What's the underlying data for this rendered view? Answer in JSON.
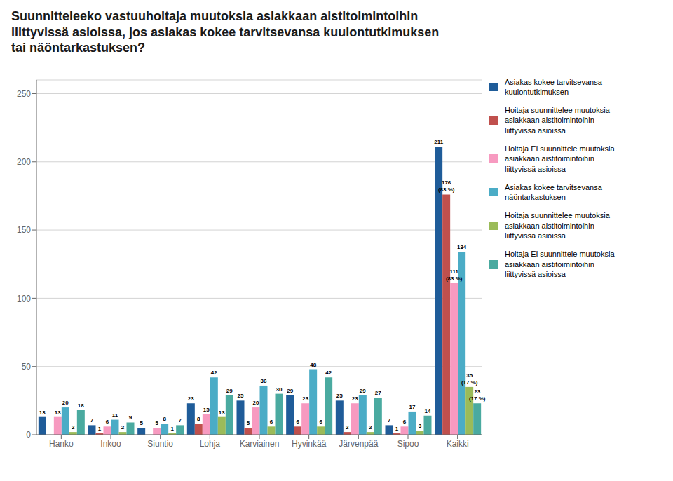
{
  "chart_data": {
    "type": "bar",
    "title": "Suunnitteleeko vastuuhoitaja muutoksia asiakkaan aistitoimintoihin\nliittyvissä asioissa, jos asiakas kokee tarvitsevansa kuulontutkimuksen\ntai näöntarkastuksen?",
    "categories": [
      "Hanko",
      "Inkoo",
      "Siuntio",
      "Lohja",
      "Karviainen",
      "Hyvinkää",
      "Järvenpää",
      "Sipoo",
      "Kaikki"
    ],
    "series": [
      {
        "name": "Asiakas kokee tarvitsevansa\nkuulontutkimuksen",
        "color": "#1F5C99",
        "values": [
          13,
          7,
          5,
          23,
          25,
          29,
          25,
          7,
          211
        ]
      },
      {
        "name": "Hoitaja suunnittelee muutoksia\nasiakkaan aistitoimintoihin\nliittyvissä asioissa",
        "color": "#C0504D",
        "values": [
          0,
          1,
          0,
          8,
          5,
          6,
          2,
          1,
          176
        ],
        "value_labels": [
          null,
          "1",
          null,
          "8",
          "5",
          "6",
          "2",
          "1",
          "176\n(83 %)"
        ]
      },
      {
        "name": "Hoitaja Ei suunnittele muutoksia\nasiakkaan aistitoimintoihin\nliittyvissä asioissa",
        "color": "#F79AC0",
        "values": [
          13,
          6,
          5,
          15,
          20,
          23,
          23,
          6,
          111
        ],
        "value_labels": [
          "13",
          "6",
          "5",
          "15",
          "20",
          "23",
          "23",
          "6",
          "111\n(83 %)"
        ]
      },
      {
        "name": "Asiakas kokee tarvitsevansa\nnäöntarkastuksen",
        "color": "#4BACC6",
        "values": [
          20,
          11,
          8,
          42,
          36,
          48,
          29,
          17,
          134
        ]
      },
      {
        "name": "Hoitaja suunnittelee muutoksia\nasiakkaan aistitoimintoihin\nliittyvissä asioissa",
        "color": "#9BBB59",
        "values": [
          2,
          2,
          1,
          13,
          6,
          6,
          2,
          3,
          35
        ],
        "value_labels": [
          "2",
          "2",
          "1",
          "13",
          "6",
          "6",
          "2",
          "3",
          "35\n(17 %)"
        ]
      },
      {
        "name": "Hoitaja Ei suunnittele muutoksia\nasiakkaan aistitoimintoihin\nliittyvissä asioissa",
        "color": "#4AAAA0",
        "values": [
          18,
          9,
          7,
          29,
          30,
          42,
          27,
          14,
          23
        ],
        "value_labels": [
          "18",
          "9",
          "7",
          "29",
          "30",
          "42",
          "27",
          "14",
          "23\n(17 %)"
        ]
      }
    ],
    "ylim": [
      0,
      260
    ],
    "yticks": [
      0,
      50,
      100,
      150,
      200,
      250
    ],
    "grid": true,
    "legend": "right",
    "data_labels": true
  }
}
